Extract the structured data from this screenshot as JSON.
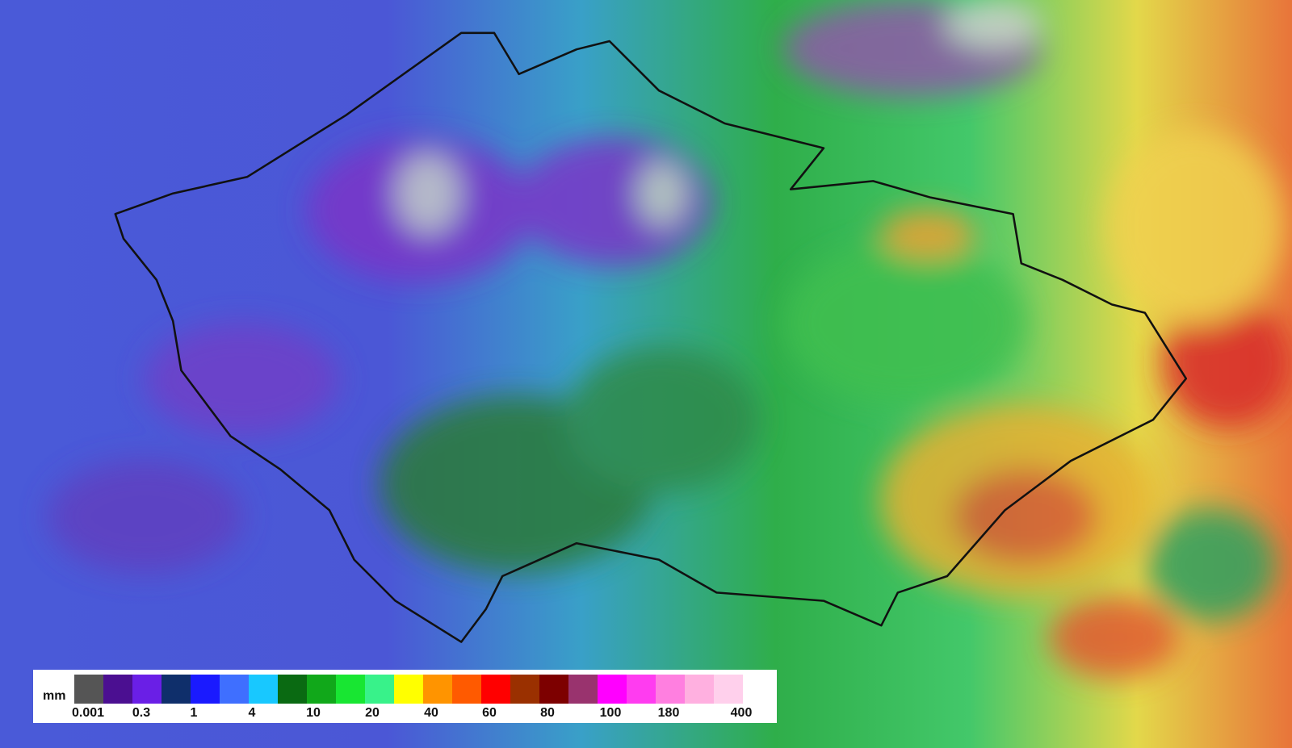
{
  "legend": {
    "unit": "mm",
    "colors": [
      "#555555",
      "#4b0f91",
      "#6a1fe6",
      "#0f2f6b",
      "#1a1aff",
      "#3f6fff",
      "#18c8ff",
      "#0a6a12",
      "#11a81a",
      "#18e632",
      "#38f28a",
      "#ffff00",
      "#ff9400",
      "#ff5a00",
      "#ff0000",
      "#9a3000",
      "#7d0000",
      "#99336e",
      "#ff00ff",
      "#ff3cf0",
      "#ff7fe0",
      "#ffb0e0",
      "#ffd0ec"
    ],
    "labels": [
      "0.001",
      "0.3",
      "1",
      "4",
      "10",
      "20",
      "40",
      "60",
      "80",
      "100",
      "180",
      "400"
    ]
  }
}
